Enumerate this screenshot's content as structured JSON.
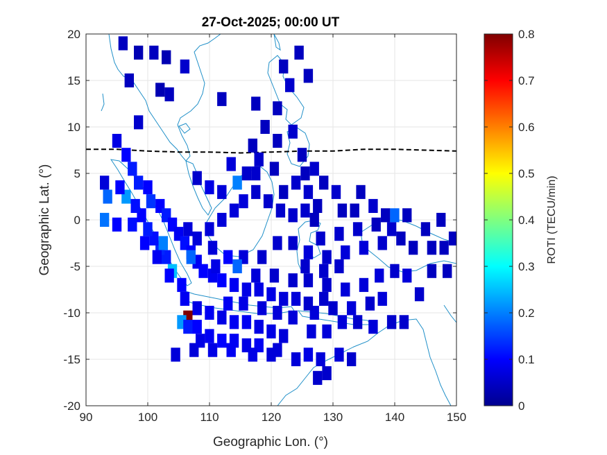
{
  "chart_data": {
    "type": "heatmap",
    "title": "27-Oct-2025; 00:00 UT",
    "xlabel": "Geographic Lon. (°)",
    "ylabel": "Geographic Lat. (°)",
    "xlim": [
      90,
      150
    ],
    "ylim": [
      -20,
      20
    ],
    "xticks": [
      "90",
      "100",
      "110",
      "120",
      "130",
      "140",
      "150"
    ],
    "yticks": [
      "20",
      "15",
      "10",
      "5",
      "0",
      "-5",
      "-10",
      "-15",
      "-20"
    ],
    "grid": true,
    "colorbar": {
      "label": "ROTI (TECU/min)",
      "range": [
        0,
        0.8
      ],
      "ticks": [
        "0",
        "0.1",
        "0.2",
        "0.3",
        "0.4",
        "0.5",
        "0.6",
        "0.7",
        "0.8"
      ],
      "colormap": "jet",
      "position": "right"
    },
    "magnetic_equator": [
      [
        90,
        7.6
      ],
      [
        95,
        7.6
      ],
      [
        100,
        7.4
      ],
      [
        105,
        7.3
      ],
      [
        110,
        7.3
      ],
      [
        115,
        7.2
      ],
      [
        120,
        7.3
      ],
      [
        125,
        7.4
      ],
      [
        130,
        7.4
      ],
      [
        135,
        7.6
      ],
      [
        140,
        7.6
      ],
      [
        145,
        7.5
      ],
      [
        150,
        7.4
      ]
    ],
    "cell_size_deg": [
      1.5,
      1.5
    ],
    "cells": [
      [
        96,
        19,
        0.05
      ],
      [
        98.5,
        18,
        0.04
      ],
      [
        101,
        18,
        0.05
      ],
      [
        103,
        17.5,
        0.04
      ],
      [
        106,
        16.5,
        0.06
      ],
      [
        102,
        14,
        0.04
      ],
      [
        97,
        15,
        0.05
      ],
      [
        103.5,
        13.5,
        0.05
      ],
      [
        98.5,
        10.5,
        0.06
      ],
      [
        112,
        13,
        0.05
      ],
      [
        117.5,
        12.5,
        0.05
      ],
      [
        121,
        12,
        0.05
      ],
      [
        122,
        16.5,
        0.05
      ],
      [
        124.5,
        18,
        0.05
      ],
      [
        123,
        14.5,
        0.06
      ],
      [
        126,
        15.5,
        0.05
      ],
      [
        119,
        10,
        0.05
      ],
      [
        117,
        8,
        0.05
      ],
      [
        121,
        8.5,
        0.05
      ],
      [
        123.5,
        9.5,
        0.06
      ],
      [
        125,
        7,
        0.05
      ],
      [
        125.5,
        5,
        0.05
      ],
      [
        124,
        4,
        0.06
      ],
      [
        122,
        3,
        0.05
      ],
      [
        95,
        8.5,
        0.08
      ],
      [
        96.5,
        7,
        0.1
      ],
      [
        97.5,
        5.5,
        0.12
      ],
      [
        98.5,
        4,
        0.12
      ],
      [
        100,
        3.5,
        0.1
      ],
      [
        100.5,
        2,
        0.14
      ],
      [
        102,
        1.5,
        0.1
      ],
      [
        103,
        0.5,
        0.12
      ],
      [
        104,
        -0.5,
        0.1
      ],
      [
        105,
        -1.5,
        0.09
      ],
      [
        106,
        -2.5,
        0.11
      ],
      [
        107,
        -3.5,
        0.1
      ],
      [
        108,
        -4.5,
        0.09
      ],
      [
        109,
        -5.5,
        0.1
      ],
      [
        110.5,
        -6,
        0.09
      ],
      [
        112,
        -6.5,
        0.1
      ],
      [
        114,
        -7,
        0.09
      ],
      [
        116,
        -7.5,
        0.08
      ],
      [
        118,
        -7.5,
        0.08
      ],
      [
        120,
        -8,
        0.08
      ],
      [
        122,
        -8.5,
        0.07
      ],
      [
        124,
        -8.5,
        0.07
      ],
      [
        105.5,
        -7,
        0.1
      ],
      [
        104,
        -5.5,
        0.25
      ],
      [
        103,
        -4,
        0.12
      ],
      [
        102,
        -3,
        0.13
      ],
      [
        101,
        -2,
        0.11
      ],
      [
        100,
        -1,
        0.12
      ],
      [
        99,
        0.5,
        0.1
      ],
      [
        98,
        1.5,
        0.11
      ],
      [
        96.5,
        2.5,
        0.22
      ],
      [
        95.5,
        3.5,
        0.1
      ],
      [
        93,
        4,
        0.07
      ],
      [
        93.5,
        2.5,
        0.18
      ],
      [
        93,
        0,
        0.19
      ],
      [
        95,
        -0.5,
        0.1
      ],
      [
        97.5,
        -0.5,
        0.11
      ],
      [
        99.5,
        -2.5,
        0.1
      ],
      [
        101.5,
        -4,
        0.09
      ],
      [
        103.5,
        -6,
        0.1
      ],
      [
        106,
        -8.5,
        0.09
      ],
      [
        108,
        -9.5,
        0.08
      ],
      [
        110,
        -10,
        0.09
      ],
      [
        112,
        -10.5,
        0.08
      ],
      [
        114,
        -11,
        0.09
      ],
      [
        116,
        -11,
        0.09
      ],
      [
        118,
        -11.5,
        0.08
      ],
      [
        120,
        -12,
        0.08
      ],
      [
        122,
        -12.5,
        0.07
      ],
      [
        106.5,
        -10.5,
        0.85
      ],
      [
        105.5,
        -11,
        0.22
      ],
      [
        108,
        -11.5,
        0.1
      ],
      [
        110,
        -12.5,
        0.09
      ],
      [
        112,
        -13,
        0.1
      ],
      [
        114,
        -13,
        0.09
      ],
      [
        116,
        -13.5,
        0.08
      ],
      [
        118,
        -13.5,
        0.09
      ],
      [
        104.5,
        -14.5,
        0.07
      ],
      [
        107.5,
        -14,
        0.07
      ],
      [
        121,
        -14,
        0.07
      ],
      [
        124,
        -15,
        0.07
      ],
      [
        126,
        -14.5,
        0.08
      ],
      [
        128,
        -15,
        0.07
      ],
      [
        129,
        -16.5,
        0.06
      ],
      [
        127.5,
        -17,
        0.06
      ],
      [
        131,
        -14.5,
        0.07
      ],
      [
        133,
        -15,
        0.06
      ],
      [
        126.5,
        -12,
        0.07
      ],
      [
        129,
        -12,
        0.07
      ],
      [
        131.5,
        -11,
        0.07
      ],
      [
        134,
        -11,
        0.06
      ],
      [
        136.5,
        -11.5,
        0.07
      ],
      [
        139.5,
        -11,
        0.06
      ],
      [
        141.5,
        -11,
        0.06
      ],
      [
        127,
        -10,
        0.07
      ],
      [
        130,
        -9.5,
        0.06
      ],
      [
        133,
        -9.5,
        0.07
      ],
      [
        136,
        -9,
        0.06
      ],
      [
        138,
        -8.5,
        0.07
      ],
      [
        132,
        -7.5,
        0.07
      ],
      [
        129,
        -7,
        0.06
      ],
      [
        126,
        -6.5,
        0.06
      ],
      [
        135,
        -7,
        0.07
      ],
      [
        137.5,
        -6,
        0.07
      ],
      [
        140,
        -5.5,
        0.06
      ],
      [
        142,
        -6,
        0.07
      ],
      [
        144,
        -8,
        0.06
      ],
      [
        146,
        -5.5,
        0.05
      ],
      [
        148.5,
        -5.5,
        0.05
      ],
      [
        148,
        -3,
        0.05
      ],
      [
        146,
        -3,
        0.05
      ],
      [
        143,
        -3,
        0.05
      ],
      [
        141,
        -2,
        0.05
      ],
      [
        138,
        -2.5,
        0.06
      ],
      [
        135,
        -3,
        0.07
      ],
      [
        132,
        -3.5,
        0.07
      ],
      [
        129,
        -4,
        0.06
      ],
      [
        126,
        -3.5,
        0.07
      ],
      [
        123.5,
        -2.5,
        0.06
      ],
      [
        121,
        -2.5,
        0.06
      ],
      [
        118.5,
        -4,
        0.06
      ],
      [
        115.5,
        -4,
        0.07
      ],
      [
        113,
        -4,
        0.1
      ],
      [
        110.5,
        -3,
        0.07
      ],
      [
        108,
        -2,
        0.07
      ],
      [
        106.5,
        -1,
        0.07
      ],
      [
        110,
        -1,
        0.07
      ],
      [
        112,
        0,
        0.07
      ],
      [
        114,
        1,
        0.07
      ],
      [
        115.5,
        2,
        0.07
      ],
      [
        117.5,
        3,
        0.06
      ],
      [
        119.5,
        2,
        0.06
      ],
      [
        112,
        3,
        0.07
      ],
      [
        110,
        3.5,
        0.08
      ],
      [
        108,
        4.5,
        0.06
      ],
      [
        114.5,
        4,
        0.2
      ],
      [
        116,
        5,
        0.06
      ],
      [
        113.5,
        6,
        0.07
      ],
      [
        118,
        6.5,
        0.06
      ],
      [
        117.5,
        5,
        0.06
      ],
      [
        120.5,
        5.5,
        0.05
      ],
      [
        121.5,
        1,
        0.06
      ],
      [
        123.5,
        0.5,
        0.06
      ],
      [
        125.5,
        1,
        0.06
      ],
      [
        127.5,
        1.5,
        0.05
      ],
      [
        126,
        3,
        0.06
      ],
      [
        127,
        5.5,
        0.06
      ],
      [
        128.5,
        4,
        0.05
      ],
      [
        130.5,
        3,
        0.06
      ],
      [
        131.5,
        1,
        0.05
      ],
      [
        133.5,
        1,
        0.05
      ],
      [
        134.5,
        3,
        0.05
      ],
      [
        136.5,
        1.5,
        0.06
      ],
      [
        138.5,
        0.5,
        0.05
      ],
      [
        139.5,
        -1,
        0.06
      ],
      [
        142,
        0.5,
        0.05
      ],
      [
        145,
        -1,
        0.05
      ],
      [
        147.5,
        0,
        0.05
      ],
      [
        149.5,
        -2,
        0.05
      ],
      [
        140,
        0.5,
        0.18
      ],
      [
        137,
        -0.5,
        0.05
      ],
      [
        134,
        -1,
        0.06
      ],
      [
        131,
        -1.5,
        0.06
      ],
      [
        128,
        -2,
        0.06
      ],
      [
        127,
        0,
        0.05
      ],
      [
        131,
        -5,
        0.06
      ],
      [
        128.5,
        -5.5,
        0.06
      ],
      [
        125.5,
        -5,
        0.06
      ],
      [
        123.5,
        -6.5,
        0.06
      ],
      [
        120.5,
        -6,
        0.06
      ],
      [
        117.5,
        -6,
        0.07
      ],
      [
        114.5,
        -5,
        0.18
      ],
      [
        111,
        -5,
        0.08
      ],
      [
        115.5,
        -9,
        0.08
      ],
      [
        113,
        -9,
        0.09
      ],
      [
        118.5,
        -9.5,
        0.07
      ],
      [
        121,
        -10,
        0.07
      ],
      [
        123.5,
        -10.5,
        0.07
      ],
      [
        126,
        -9,
        0.06
      ],
      [
        128.5,
        -8.5,
        0.06
      ],
      [
        106.5,
        -11.5,
        0.12
      ],
      [
        108.5,
        -13,
        0.08
      ],
      [
        110.5,
        -14,
        0.08
      ],
      [
        113.5,
        -14,
        0.09
      ],
      [
        117,
        -14.5,
        0.08
      ],
      [
        120,
        -14.5,
        0.07
      ],
      [
        102.5,
        -2.5,
        0.2
      ],
      [
        107,
        -4,
        0.18
      ]
    ]
  }
}
